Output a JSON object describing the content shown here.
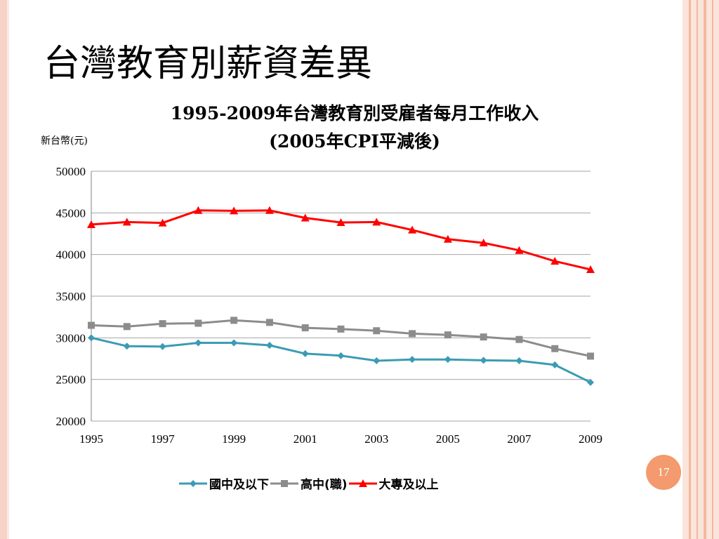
{
  "slide": {
    "title": "台灣教育別薪資差異",
    "page_number": "17"
  },
  "colors": {
    "series_1": "#3a9cb3",
    "series_2": "#8c8c8c",
    "series_3": "#ff0000",
    "badge": "#f39a6e"
  },
  "chart_data": {
    "type": "line",
    "title_line1": "1995-2009年台灣教育別受雇者每月工作收入",
    "title_line2": "(2005年CPI平減後)",
    "ylabel": "新台幣(元)",
    "xlabel": "",
    "x": [
      1995,
      1996,
      1997,
      1998,
      1999,
      2000,
      2001,
      2002,
      2003,
      2004,
      2005,
      2006,
      2007,
      2008,
      2009
    ],
    "x_tick_labels": [
      "1995",
      "1997",
      "1999",
      "2001",
      "2003",
      "2005",
      "2007",
      "2009"
    ],
    "y_tick_labels": [
      "50000",
      "45000",
      "40000",
      "35000",
      "30000",
      "25000",
      "20000"
    ],
    "ylim": [
      20000,
      50000
    ],
    "grid": true,
    "legend_position": "bottom",
    "series": [
      {
        "name": "國中及以下",
        "marker": "diamond",
        "values": [
          30000,
          29000,
          28950,
          29400,
          29400,
          29100,
          28100,
          27850,
          27250,
          27400,
          27400,
          27300,
          27250,
          26750,
          24650
        ]
      },
      {
        "name": "高中(職)",
        "marker": "square",
        "values": [
          31500,
          31350,
          31700,
          31750,
          32100,
          31850,
          31200,
          31050,
          30850,
          30500,
          30350,
          30100,
          29800,
          28700,
          27800
        ]
      },
      {
        "name": "大專及以上",
        "marker": "triangle",
        "values": [
          43600,
          43900,
          43800,
          45300,
          45250,
          45300,
          44400,
          43850,
          43900,
          42950,
          41850,
          41400,
          40500,
          39200,
          38200
        ]
      }
    ]
  }
}
